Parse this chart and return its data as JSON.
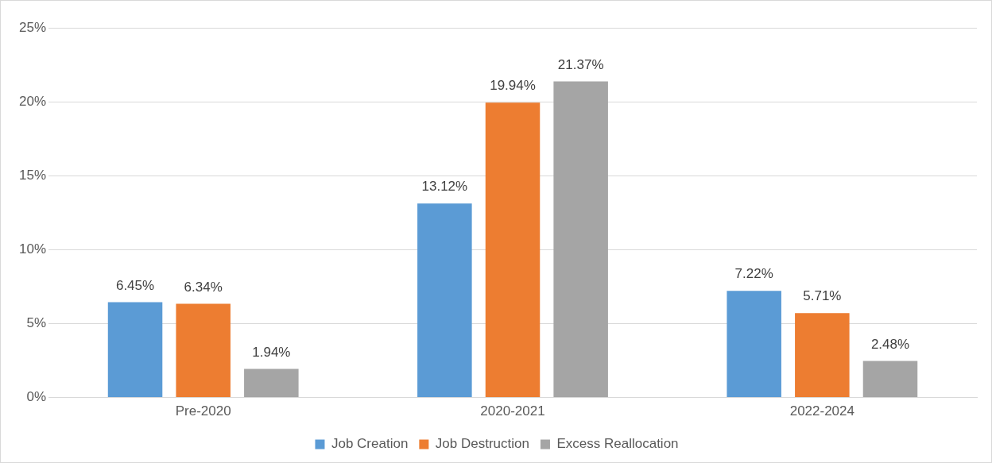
{
  "chart_data": {
    "type": "bar",
    "categories": [
      "Pre-2020",
      "2020-2021",
      "2022-2024"
    ],
    "series": [
      {
        "name": "Job Creation",
        "color": "#5b9bd5",
        "values": [
          6.45,
          13.12,
          7.22
        ],
        "value_labels": [
          "6.45%",
          "13.12%",
          "7.22%"
        ]
      },
      {
        "name": "Job Destruction",
        "color": "#ed7d31",
        "values": [
          6.34,
          19.94,
          5.71
        ],
        "value_labels": [
          "6.34%",
          "19.94%",
          "5.71%"
        ]
      },
      {
        "name": "Excess Reallocation",
        "color": "#a5a5a5",
        "values": [
          1.94,
          21.37,
          2.48
        ],
        "value_labels": [
          "1.94%",
          "21.37%",
          "2.48%"
        ]
      }
    ],
    "ylim": [
      0,
      25
    ],
    "yticks": [
      {
        "value": 0,
        "label": "0%"
      },
      {
        "value": 5,
        "label": "5%"
      },
      {
        "value": 10,
        "label": "10%"
      },
      {
        "value": 15,
        "label": "15%"
      },
      {
        "value": 20,
        "label": "20%"
      },
      {
        "value": 25,
        "label": "25%"
      }
    ],
    "grid": "y",
    "legend": "bottom"
  }
}
